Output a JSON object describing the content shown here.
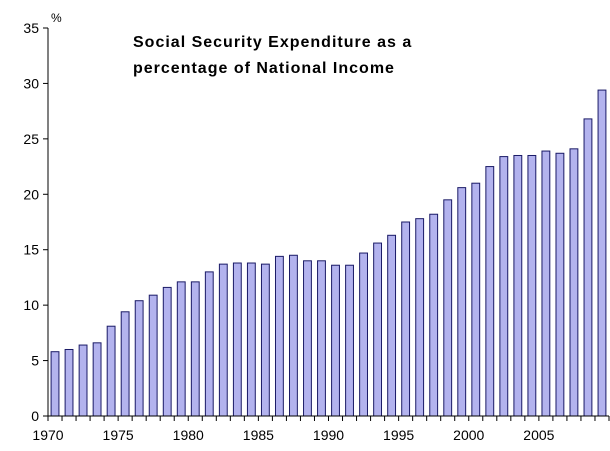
{
  "chart_data": {
    "type": "bar",
    "title_line1": "Social Security Expenditure as a",
    "title_line2": "percentage of National Income",
    "yunit": "%",
    "xlabel": "",
    "ylabel": "",
    "ylim": [
      0,
      35
    ],
    "yticks": [
      0,
      5,
      10,
      15,
      20,
      25,
      30,
      35
    ],
    "xtick_labels": [
      "1970",
      "1975",
      "1980",
      "1985",
      "1990",
      "1995",
      "2000",
      "2005"
    ],
    "x": [
      1970,
      1971,
      1972,
      1973,
      1974,
      1975,
      1976,
      1977,
      1978,
      1979,
      1980,
      1981,
      1982,
      1983,
      1984,
      1985,
      1986,
      1987,
      1988,
      1989,
      1990,
      1991,
      1992,
      1993,
      1994,
      1995,
      1996,
      1997,
      1998,
      1999,
      2000,
      2001,
      2002,
      2003,
      2004,
      2005,
      2006,
      2007,
      2008,
      2009
    ],
    "values": [
      5.8,
      6.0,
      6.4,
      6.6,
      8.1,
      9.4,
      10.4,
      10.9,
      11.6,
      12.1,
      12.1,
      13.0,
      13.7,
      13.8,
      13.8,
      13.7,
      14.4,
      14.5,
      14.0,
      14.0,
      13.6,
      13.6,
      14.7,
      15.6,
      16.3,
      17.5,
      17.8,
      18.2,
      19.5,
      20.6,
      21.0,
      22.5,
      23.4,
      23.5,
      23.5,
      23.9,
      23.7,
      24.1,
      26.8,
      29.4
    ],
    "grid": false,
    "legend": "none"
  }
}
